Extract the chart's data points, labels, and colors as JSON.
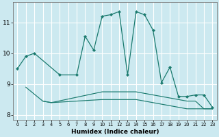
{
  "xlabel": "Humidex (Indice chaleur)",
  "bg_color": "#cce9f0",
  "grid_color": "#ffffff",
  "line_color": "#1a7a6e",
  "xlim": [
    -0.5,
    23.5
  ],
  "ylim": [
    7.85,
    11.65
  ],
  "yticks": [
    8,
    9,
    10,
    11
  ],
  "xticks": [
    0,
    1,
    2,
    3,
    4,
    5,
    6,
    7,
    8,
    9,
    10,
    11,
    12,
    13,
    14,
    15,
    16,
    17,
    18,
    19,
    20,
    21,
    22,
    23
  ],
  "series1_x": [
    0,
    1,
    2,
    5,
    7,
    8,
    9,
    10,
    11,
    12,
    13,
    14,
    15,
    16,
    17,
    18,
    19,
    20,
    21,
    22,
    23
  ],
  "series1_y": [
    9.5,
    9.9,
    10.0,
    9.3,
    9.3,
    10.55,
    10.1,
    11.2,
    11.25,
    11.35,
    9.3,
    11.35,
    11.25,
    10.75,
    9.05,
    9.55,
    8.6,
    8.6,
    8.65,
    8.65,
    8.25
  ],
  "series2_x": [
    1,
    3,
    4,
    10,
    11,
    12,
    13,
    14,
    15,
    16,
    17,
    18,
    19,
    20,
    21,
    22,
    23
  ],
  "series2_y": [
    8.9,
    8.45,
    8.4,
    8.75,
    8.75,
    8.75,
    8.75,
    8.75,
    8.7,
    8.65,
    8.6,
    8.55,
    8.5,
    8.45,
    8.45,
    8.2,
    8.2
  ],
  "series3_x": [
    3,
    4,
    10,
    11,
    12,
    13,
    14,
    15,
    16,
    17,
    18,
    19,
    20,
    21,
    22,
    23
  ],
  "series3_y": [
    8.45,
    8.4,
    8.5,
    8.5,
    8.5,
    8.5,
    8.5,
    8.45,
    8.4,
    8.35,
    8.3,
    8.25,
    8.2,
    8.2,
    8.2,
    8.2
  ]
}
